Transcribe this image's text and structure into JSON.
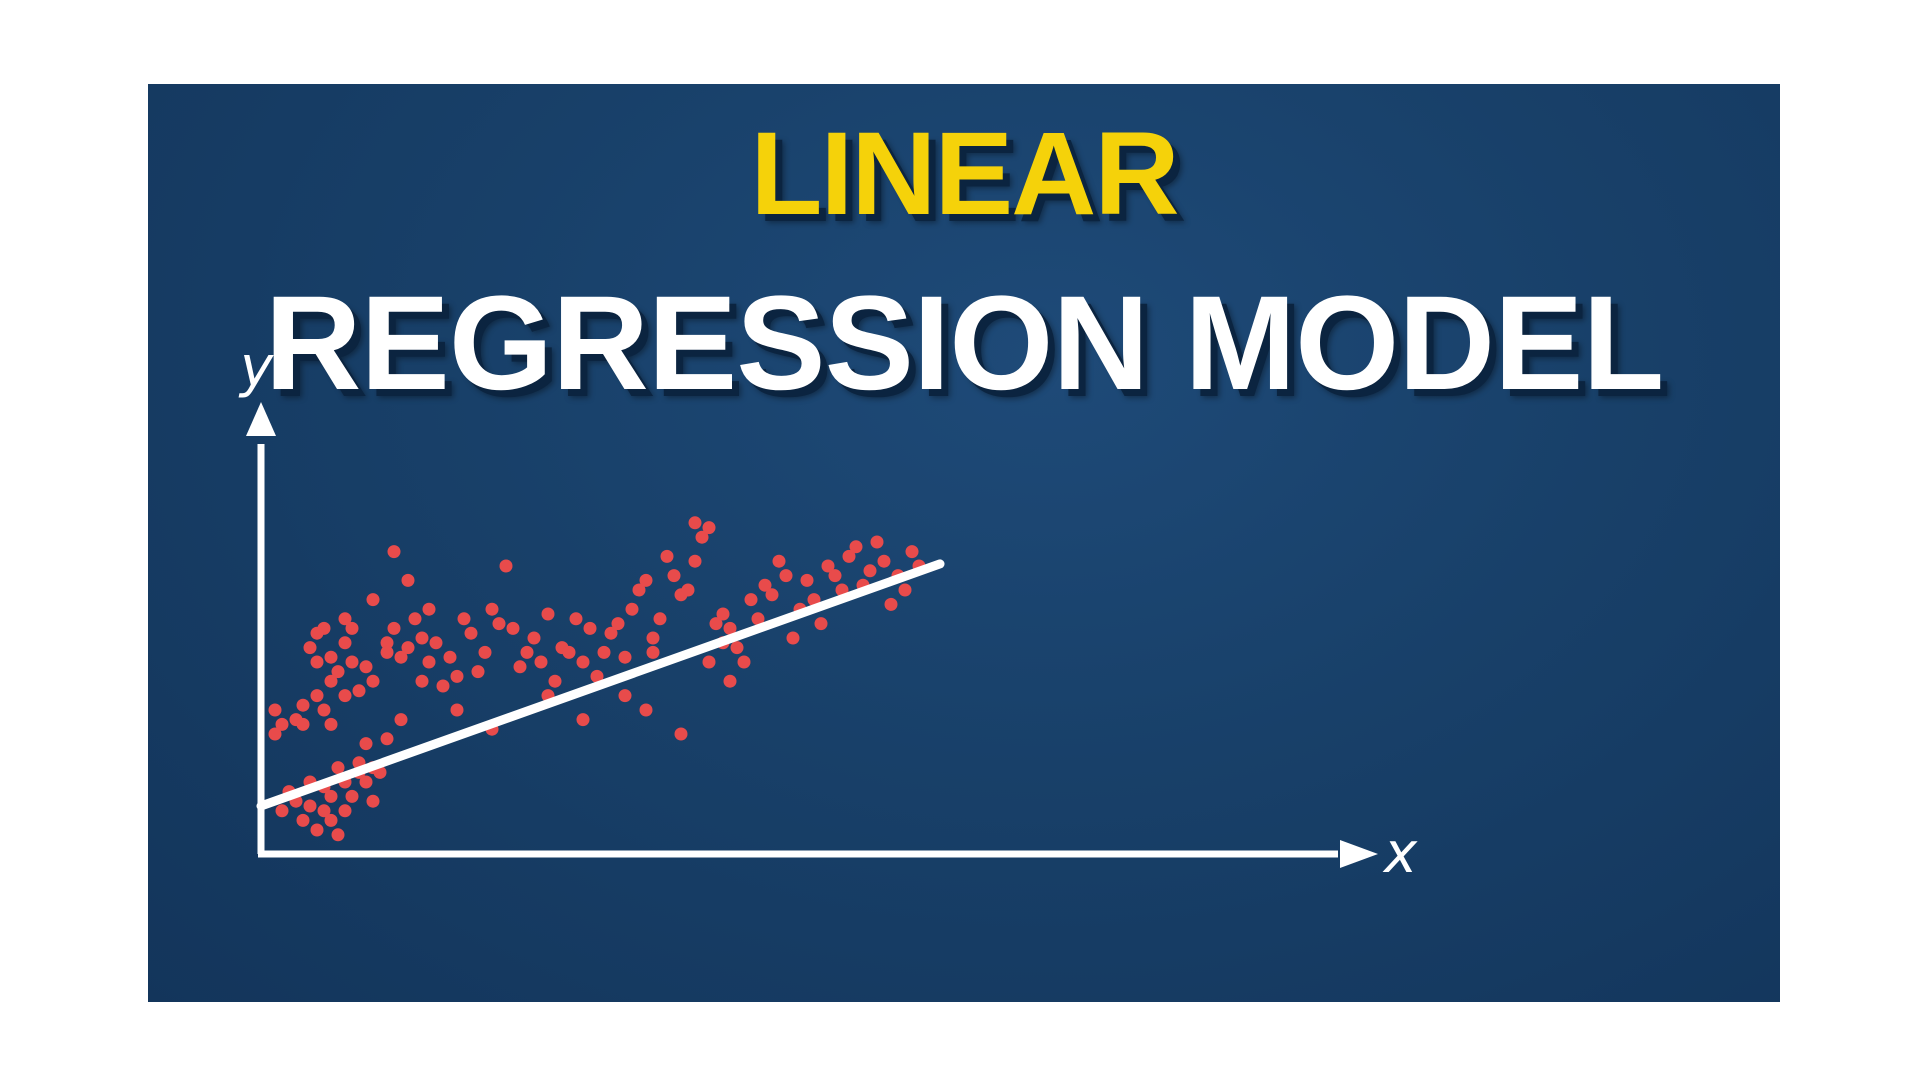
{
  "title": {
    "line1": "LINEAR",
    "line2": "REGRESSION MODEL"
  },
  "colors": {
    "background": "#184069",
    "accent": "#f5d20a",
    "text": "#ffffff",
    "points": "#e84b4b",
    "line": "#ffffff"
  },
  "diagram": {
    "x_label": "x",
    "y_label": "y",
    "regression_line": {
      "intercept": 0.1,
      "slope": 0.52
    },
    "points": [
      [
        0.02,
        0.3
      ],
      [
        0.03,
        0.27
      ],
      [
        0.02,
        0.25
      ],
      [
        0.05,
        0.28
      ],
      [
        0.06,
        0.31
      ],
      [
        0.06,
        0.27
      ],
      [
        0.08,
        0.33
      ],
      [
        0.09,
        0.3
      ],
      [
        0.1,
        0.27
      ],
      [
        0.04,
        0.13
      ],
      [
        0.05,
        0.11
      ],
      [
        0.03,
        0.09
      ],
      [
        0.06,
        0.07
      ],
      [
        0.07,
        0.1
      ],
      [
        0.08,
        0.05
      ],
      [
        0.09,
        0.09
      ],
      [
        0.1,
        0.07
      ],
      [
        0.11,
        0.04
      ],
      [
        0.12,
        0.09
      ],
      [
        0.13,
        0.12
      ],
      [
        0.14,
        0.17
      ],
      [
        0.15,
        0.15
      ],
      [
        0.16,
        0.11
      ],
      [
        0.17,
        0.17
      ],
      [
        0.14,
        0.19
      ],
      [
        0.11,
        0.18
      ],
      [
        0.12,
        0.15
      ],
      [
        0.09,
        0.14
      ],
      [
        0.1,
        0.12
      ],
      [
        0.07,
        0.15
      ],
      [
        0.15,
        0.23
      ],
      [
        0.16,
        0.18
      ],
      [
        0.07,
        0.43
      ],
      [
        0.08,
        0.4
      ],
      [
        0.09,
        0.47
      ],
      [
        0.1,
        0.41
      ],
      [
        0.11,
        0.38
      ],
      [
        0.12,
        0.44
      ],
      [
        0.1,
        0.36
      ],
      [
        0.08,
        0.46
      ],
      [
        0.13,
        0.4
      ],
      [
        0.15,
        0.39
      ],
      [
        0.13,
        0.47
      ],
      [
        0.16,
        0.36
      ],
      [
        0.12,
        0.33
      ],
      [
        0.14,
        0.34
      ],
      [
        0.12,
        0.49
      ],
      [
        0.16,
        0.53
      ],
      [
        0.18,
        0.44
      ],
      [
        0.18,
        0.42
      ],
      [
        0.19,
        0.47
      ],
      [
        0.2,
        0.41
      ],
      [
        0.19,
        0.63
      ],
      [
        0.21,
        0.43
      ],
      [
        0.22,
        0.49
      ],
      [
        0.21,
        0.57
      ],
      [
        0.23,
        0.36
      ],
      [
        0.23,
        0.45
      ],
      [
        0.24,
        0.51
      ],
      [
        0.24,
        0.4
      ],
      [
        0.25,
        0.44
      ],
      [
        0.26,
        0.35
      ],
      [
        0.27,
        0.41
      ],
      [
        0.28,
        0.37
      ],
      [
        0.29,
        0.49
      ],
      [
        0.3,
        0.46
      ],
      [
        0.31,
        0.38
      ],
      [
        0.32,
        0.42
      ],
      [
        0.33,
        0.51
      ],
      [
        0.34,
        0.48
      ],
      [
        0.35,
        0.6
      ],
      [
        0.36,
        0.47
      ],
      [
        0.37,
        0.39
      ],
      [
        0.38,
        0.42
      ],
      [
        0.39,
        0.45
      ],
      [
        0.4,
        0.4
      ],
      [
        0.41,
        0.5
      ],
      [
        0.42,
        0.36
      ],
      [
        0.43,
        0.43
      ],
      [
        0.44,
        0.42
      ],
      [
        0.45,
        0.49
      ],
      [
        0.47,
        0.47
      ],
      [
        0.46,
        0.4
      ],
      [
        0.48,
        0.37
      ],
      [
        0.49,
        0.42
      ],
      [
        0.5,
        0.46
      ],
      [
        0.51,
        0.48
      ],
      [
        0.52,
        0.41
      ],
      [
        0.53,
        0.51
      ],
      [
        0.54,
        0.55
      ],
      [
        0.55,
        0.57
      ],
      [
        0.55,
        0.3
      ],
      [
        0.56,
        0.45
      ],
      [
        0.56,
        0.42
      ],
      [
        0.57,
        0.49
      ],
      [
        0.58,
        0.62
      ],
      [
        0.59,
        0.58
      ],
      [
        0.6,
        0.54
      ],
      [
        0.61,
        0.55
      ],
      [
        0.62,
        0.61
      ],
      [
        0.63,
        0.66
      ],
      [
        0.62,
        0.69
      ],
      [
        0.64,
        0.68
      ],
      [
        0.65,
        0.48
      ],
      [
        0.66,
        0.44
      ],
      [
        0.66,
        0.5
      ],
      [
        0.67,
        0.47
      ],
      [
        0.68,
        0.43
      ],
      [
        0.67,
        0.36
      ],
      [
        0.69,
        0.4
      ],
      [
        0.7,
        0.53
      ],
      [
        0.71,
        0.49
      ],
      [
        0.72,
        0.56
      ],
      [
        0.73,
        0.54
      ],
      [
        0.74,
        0.61
      ],
      [
        0.75,
        0.58
      ],
      [
        0.76,
        0.45
      ],
      [
        0.77,
        0.51
      ],
      [
        0.78,
        0.57
      ],
      [
        0.79,
        0.53
      ],
      [
        0.8,
        0.48
      ],
      [
        0.81,
        0.6
      ],
      [
        0.82,
        0.58
      ],
      [
        0.83,
        0.55
      ],
      [
        0.84,
        0.62
      ],
      [
        0.85,
        0.64
      ],
      [
        0.86,
        0.56
      ],
      [
        0.87,
        0.59
      ],
      [
        0.88,
        0.65
      ],
      [
        0.89,
        0.61
      ],
      [
        0.9,
        0.52
      ],
      [
        0.91,
        0.58
      ],
      [
        0.92,
        0.55
      ],
      [
        0.93,
        0.63
      ],
      [
        0.94,
        0.6
      ],
      [
        0.6,
        0.25
      ],
      [
        0.64,
        0.4
      ],
      [
        0.52,
        0.33
      ],
      [
        0.46,
        0.28
      ],
      [
        0.41,
        0.33
      ],
      [
        0.33,
        0.26
      ],
      [
        0.28,
        0.3
      ],
      [
        0.2,
        0.28
      ],
      [
        0.18,
        0.24
      ]
    ]
  }
}
